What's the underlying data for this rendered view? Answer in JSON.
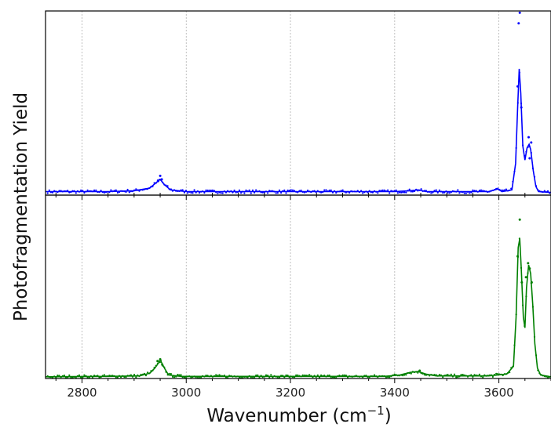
{
  "chart_data": {
    "type": "line",
    "xlabel_main": "Wavenumber (cm",
    "xlabel_sup": "−1",
    "xlabel_close": ")",
    "ylabel": "Photofragmentation Yield",
    "xlim": [
      2730,
      3700
    ],
    "xticks": [
      2800,
      3000,
      3200,
      3400,
      3600
    ],
    "xtick_labels": [
      "2800",
      "3000",
      "3200",
      "3400",
      "3600"
    ],
    "grid": "vertical dotted at major x ticks",
    "y_tick_labels_shown": false,
    "layout": "two vertically stacked panels sharing x-axis",
    "panels": [
      {
        "name": "",
        "color": "#0000ff",
        "ylim": [
          0,
          1.05
        ],
        "fit_points": [
          [
            2730,
            0.02
          ],
          [
            2850,
            0.02
          ],
          [
            2900,
            0.025
          ],
          [
            2930,
            0.04
          ],
          [
            2942,
            0.07
          ],
          [
            2950,
            0.09
          ],
          [
            2958,
            0.06
          ],
          [
            2970,
            0.03
          ],
          [
            3000,
            0.02
          ],
          [
            3400,
            0.02
          ],
          [
            3430,
            0.025
          ],
          [
            3445,
            0.03
          ],
          [
            3460,
            0.02
          ],
          [
            3580,
            0.02
          ],
          [
            3598,
            0.035
          ],
          [
            3606,
            0.02
          ],
          [
            3625,
            0.03
          ],
          [
            3632,
            0.18
          ],
          [
            3636,
            0.5
          ],
          [
            3639,
            0.72
          ],
          [
            3642,
            0.58
          ],
          [
            3646,
            0.28
          ],
          [
            3650,
            0.2
          ],
          [
            3654,
            0.27
          ],
          [
            3658,
            0.29
          ],
          [
            3661,
            0.26
          ],
          [
            3666,
            0.14
          ],
          [
            3671,
            0.05
          ],
          [
            3676,
            0.02
          ],
          [
            3700,
            0.015
          ]
        ],
        "peak_points": [
          [
            2946,
            0.08
          ],
          [
            2950,
            0.11
          ],
          [
            2953,
            0.09
          ],
          [
            3638,
            0.98
          ],
          [
            3640,
            1.04
          ],
          [
            3636,
            0.62
          ],
          [
            3643,
            0.5
          ],
          [
            3657,
            0.33
          ],
          [
            3662,
            0.3
          ],
          [
            3659,
            0.21
          ]
        ]
      },
      {
        "name": "",
        "color": "#008000",
        "ylim": [
          0,
          1.05
        ],
        "fit_points": [
          [
            2730,
            0.01
          ],
          [
            2850,
            0.012
          ],
          [
            2910,
            0.015
          ],
          [
            2930,
            0.03
          ],
          [
            2940,
            0.06
          ],
          [
            2947,
            0.09
          ],
          [
            2952,
            0.095
          ],
          [
            2958,
            0.06
          ],
          [
            2966,
            0.02
          ],
          [
            2990,
            0.012
          ],
          [
            3380,
            0.012
          ],
          [
            3410,
            0.02
          ],
          [
            3430,
            0.035
          ],
          [
            3445,
            0.04
          ],
          [
            3460,
            0.025
          ],
          [
            3480,
            0.015
          ],
          [
            3580,
            0.015
          ],
          [
            3615,
            0.025
          ],
          [
            3628,
            0.07
          ],
          [
            3633,
            0.35
          ],
          [
            3637,
            0.75
          ],
          [
            3640,
            0.8
          ],
          [
            3643,
            0.62
          ],
          [
            3647,
            0.35
          ],
          [
            3650,
            0.29
          ],
          [
            3653,
            0.52
          ],
          [
            3657,
            0.65
          ],
          [
            3661,
            0.6
          ],
          [
            3665,
            0.42
          ],
          [
            3669,
            0.2
          ],
          [
            3674,
            0.06
          ],
          [
            3680,
            0.02
          ],
          [
            3700,
            0.01
          ]
        ],
        "peak_points": [
          [
            2945,
            0.1
          ],
          [
            2950,
            0.11
          ],
          [
            2954,
            0.08
          ],
          [
            3640,
            0.91
          ],
          [
            3636,
            0.7
          ],
          [
            3644,
            0.55
          ],
          [
            3652,
            0.58
          ],
          [
            3656,
            0.66
          ],
          [
            3659,
            0.63
          ],
          [
            3663,
            0.55
          ],
          [
            3448,
            0.045
          ]
        ]
      }
    ]
  }
}
